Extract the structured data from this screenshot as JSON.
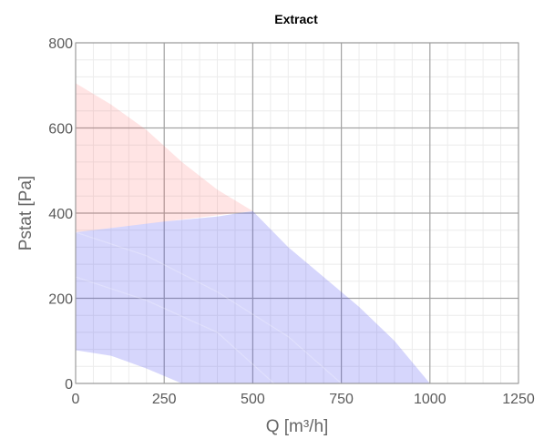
{
  "chart_data": {
    "type": "area",
    "title": "Extract",
    "xlabel": "Q [m³/h]",
    "ylabel": "Pstat [Pa]",
    "xlim": [
      0,
      1250
    ],
    "ylim": [
      0,
      800
    ],
    "x_ticks": [
      0,
      250,
      500,
      750,
      1000,
      1250
    ],
    "y_ticks": [
      0,
      200,
      400,
      600,
      800
    ],
    "x_tick_labels": [
      "0",
      "250",
      "500",
      "750",
      "1000",
      "1250"
    ],
    "y_tick_labels": [
      "0",
      "200",
      "400",
      "600",
      "800"
    ],
    "grid": true,
    "minor_grid": true,
    "areas": [
      {
        "color": "#ff5a5a",
        "opacity": 0.16,
        "points": [
          [
            0,
            705
          ],
          [
            100,
            655
          ],
          [
            200,
            595
          ],
          [
            300,
            520
          ],
          [
            400,
            455
          ],
          [
            500,
            405
          ],
          [
            0,
            355
          ]
        ]
      },
      {
        "color": "#3c3cf0",
        "opacity": 0.21,
        "points": [
          [
            0,
            355
          ],
          [
            100,
            365
          ],
          [
            250,
            380
          ],
          [
            400,
            392
          ],
          [
            500,
            405
          ],
          [
            600,
            320
          ],
          [
            700,
            250
          ],
          [
            800,
            180
          ],
          [
            900,
            100
          ],
          [
            1000,
            0
          ],
          [
            300,
            0
          ],
          [
            200,
            35
          ],
          [
            100,
            65
          ],
          [
            0,
            78
          ]
        ]
      }
    ],
    "faint_curves": [
      [
        [
          0,
          355
        ],
        [
          200,
          300
        ],
        [
          400,
          215
        ],
        [
          600,
          110
        ],
        [
          750,
          0
        ]
      ],
      [
        [
          0,
          250
        ],
        [
          200,
          195
        ],
        [
          400,
          120
        ],
        [
          560,
          0
        ]
      ]
    ]
  }
}
